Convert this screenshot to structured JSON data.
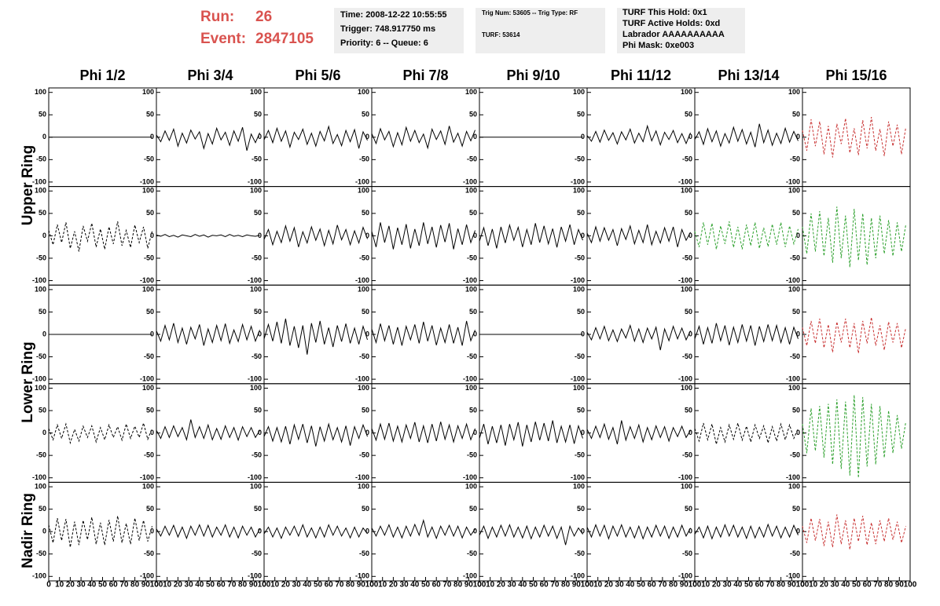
{
  "header": {
    "run_label": "Run:",
    "run": "26",
    "event_label": "Event:",
    "event": "2847105",
    "boxes": [
      [
        "Time: 2008-12-22 10:55:55",
        "Trigger: 748.917750 ms",
        "Priority: 6 -- Queue: 6"
      ],
      [
        "Trig Num: 53605 -- Trig Type: RF",
        "TURF: 53614"
      ],
      [
        "TURF This Hold: 0x1",
        "TURF Active Holds: 0xd",
        "Labrador AAAAAAAAAA",
        "Phi Mask: 0xe003"
      ]
    ]
  },
  "chart_data": {
    "type": "line",
    "columns": [
      "Phi 1/2",
      "Phi 3/4",
      "Phi 5/6",
      "Phi 7/8",
      "Phi 9/10",
      "Phi 11/12",
      "Phi 13/14",
      "Phi 15/16"
    ],
    "rows": [
      "Upper Ring",
      "Lower Ring",
      "Nadir Ring"
    ],
    "ylim": [
      -110,
      110
    ],
    "yticks": [
      -100,
      -50,
      0,
      50,
      100
    ],
    "xlim": [
      0,
      100
    ],
    "xticks": [
      0,
      10,
      20,
      30,
      40,
      50,
      60,
      70,
      80,
      90,
      100
    ],
    "x": [
      0,
      4,
      8,
      12,
      16,
      20,
      24,
      28,
      32,
      36,
      40,
      44,
      48,
      52,
      56,
      60,
      64,
      68,
      72,
      76,
      80,
      84,
      88,
      92,
      96
    ],
    "panels": [
      {
        "color": "#000000",
        "dash": false,
        "values": [
          0,
          0,
          0,
          0,
          0,
          0,
          0,
          0,
          0,
          0,
          0,
          0,
          0,
          0,
          0,
          0,
          0,
          0,
          0,
          0,
          0,
          0,
          0,
          0,
          0
        ]
      },
      {
        "color": "#000000",
        "dash": false,
        "values": [
          5,
          -10,
          14,
          -7,
          18,
          -20,
          9,
          -13,
          16,
          -4,
          12,
          -25,
          8,
          -15,
          20,
          -6,
          11,
          -18,
          14,
          -9,
          22,
          -30,
          7,
          -12,
          10
        ]
      },
      {
        "color": "#000000",
        "dash": false,
        "values": [
          -6,
          15,
          -12,
          20,
          -9,
          14,
          -22,
          11,
          -5,
          18,
          -16,
          9,
          -20,
          13,
          -8,
          24,
          -14,
          6,
          -19,
          15,
          -10,
          17,
          -25,
          12,
          -7
        ]
      },
      {
        "color": "#000000",
        "dash": false,
        "values": [
          8,
          -14,
          19,
          -6,
          13,
          -21,
          10,
          -17,
          22,
          -9,
          15,
          -12,
          7,
          -24,
          18,
          -5,
          14,
          -16,
          25,
          -11,
          9,
          -20,
          13,
          -8,
          16
        ]
      },
      {
        "color": "#000000",
        "dash": false,
        "values": [
          0,
          0,
          0,
          0,
          0,
          0,
          0,
          0,
          0,
          0,
          0,
          0,
          0,
          0,
          0,
          0,
          0,
          0,
          0,
          0,
          0,
          0,
          0,
          0,
          0
        ]
      },
      {
        "color": "#000000",
        "dash": false,
        "values": [
          4,
          -9,
          13,
          -11,
          16,
          -7,
          10,
          -15,
          12,
          -6,
          18,
          -13,
          9,
          -10,
          25,
          -8,
          14,
          -17,
          11,
          -5,
          15,
          -12,
          8,
          -14,
          10
        ]
      },
      {
        "color": "#000000",
        "dash": false,
        "values": [
          -5,
          12,
          -16,
          19,
          -10,
          14,
          -20,
          8,
          -13,
          22,
          -9,
          17,
          -15,
          11,
          -22,
          30,
          -12,
          16,
          -18,
          9,
          -14,
          20,
          -11,
          13,
          -8
        ]
      },
      {
        "color": "#c83232",
        "dash": true,
        "values": [
          15,
          -30,
          40,
          -20,
          35,
          -38,
          25,
          -45,
          30,
          -15,
          42,
          -35,
          20,
          -40,
          38,
          -25,
          45,
          -30,
          18,
          -42,
          35,
          -20,
          28,
          -38,
          22
        ]
      },
      {
        "color": "#000000",
        "dash": true,
        "values": [
          12,
          -20,
          25,
          -15,
          30,
          -28,
          10,
          -35,
          22,
          -12,
          28,
          -25,
          15,
          -30,
          20,
          -18,
          32,
          -22,
          12,
          -26,
          24,
          -15,
          20,
          -28,
          10
        ]
      },
      {
        "color": "#000000",
        "dash": false,
        "values": [
          2,
          -1,
          3,
          -2,
          1,
          -3,
          2,
          0,
          -2,
          3,
          -1,
          2,
          -3,
          1,
          0,
          2,
          -2,
          3,
          -1,
          1,
          -2,
          2,
          0,
          -1,
          1
        ]
      },
      {
        "color": "#000000",
        "dash": false,
        "values": [
          -8,
          14,
          -20,
          10,
          -15,
          22,
          -12,
          18,
          -25,
          9,
          -16,
          20,
          -10,
          15,
          -22,
          12,
          -18,
          24,
          -9,
          14,
          -20,
          11,
          -16,
          19,
          -7
        ]
      },
      {
        "color": "#000000",
        "dash": false,
        "values": [
          10,
          -25,
          30,
          -15,
          22,
          -30,
          18,
          -20,
          26,
          -28,
          15,
          -22,
          30,
          -18,
          20,
          -26,
          24,
          -14,
          28,
          -30,
          16,
          -20,
          25,
          -15,
          12
        ]
      },
      {
        "color": "#000000",
        "dash": false,
        "values": [
          -12,
          18,
          -22,
          15,
          -28,
          20,
          -16,
          24,
          -10,
          19,
          -25,
          14,
          -20,
          28,
          -15,
          22,
          -18,
          16,
          -26,
          20,
          -12,
          25,
          -20,
          14,
          -10
        ]
      },
      {
        "color": "#000000",
        "dash": false,
        "values": [
          6,
          -15,
          20,
          -12,
          18,
          -10,
          14,
          -22,
          16,
          -8,
          22,
          -18,
          12,
          -15,
          25,
          -20,
          10,
          -16,
          18,
          -12,
          20,
          -25,
          14,
          -10,
          8
        ]
      },
      {
        "color": "#2ca02c",
        "dash": true,
        "values": [
          10,
          -25,
          30,
          -20,
          28,
          -30,
          22,
          -18,
          32,
          -26,
          20,
          -30,
          25,
          -22,
          30,
          -28,
          18,
          -24,
          26,
          -20,
          30,
          -25,
          22,
          -18,
          15
        ]
      },
      {
        "color": "#2ca02c",
        "dash": true,
        "values": [
          20,
          -40,
          50,
          -35,
          55,
          -45,
          40,
          -60,
          65,
          -50,
          45,
          -70,
          60,
          -55,
          50,
          -65,
          40,
          -50,
          45,
          -40,
          35,
          -45,
          30,
          -35,
          25
        ]
      },
      {
        "color": "#000000",
        "dash": false,
        "values": [
          0,
          0,
          0,
          0,
          0,
          0,
          0,
          0,
          0,
          0,
          0,
          0,
          0,
          0,
          0,
          0,
          0,
          0,
          0,
          0,
          0,
          0,
          0,
          0,
          0
        ]
      },
      {
        "color": "#000000",
        "dash": false,
        "values": [
          8,
          -15,
          20,
          -12,
          25,
          -18,
          14,
          -22,
          16,
          -10,
          22,
          -25,
          12,
          -18,
          20,
          -14,
          24,
          -20,
          10,
          -16,
          22,
          -12,
          18,
          -15,
          10
        ]
      },
      {
        "color": "#000000",
        "dash": false,
        "values": [
          -10,
          22,
          -15,
          28,
          -20,
          35,
          -25,
          18,
          -30,
          20,
          -45,
          25,
          -18,
          30,
          -22,
          15,
          -28,
          20,
          -16,
          24,
          -20,
          14,
          -22,
          18,
          -12
        ]
      },
      {
        "color": "#000000",
        "dash": false,
        "values": [
          12,
          -18,
          24,
          -14,
          20,
          -22,
          16,
          -25,
          18,
          -12,
          22,
          -20,
          28,
          -15,
          20,
          -24,
          14,
          -18,
          22,
          -20,
          16,
          -25,
          30,
          -14,
          10
        ]
      },
      {
        "color": "#000000",
        "dash": false,
        "values": [
          0,
          0,
          0,
          0,
          0,
          0,
          0,
          0,
          0,
          0,
          0,
          0,
          0,
          0,
          0,
          0,
          0,
          0,
          0,
          0,
          0,
          0,
          0,
          0,
          0
        ]
      },
      {
        "color": "#000000",
        "dash": false,
        "values": [
          5,
          -12,
          15,
          -10,
          18,
          -14,
          10,
          -16,
          12,
          -8,
          20,
          -15,
          12,
          -18,
          14,
          -10,
          16,
          -35,
          12,
          -14,
          18,
          -10,
          14,
          -12,
          8
        ]
      },
      {
        "color": "#000000",
        "dash": false,
        "values": [
          -10,
          18,
          -22,
          15,
          -20,
          25,
          -14,
          20,
          -24,
          16,
          -18,
          22,
          -15,
          20,
          -25,
          18,
          -16,
          22,
          -14,
          20,
          -18,
          15,
          -22,
          16,
          -10
        ]
      },
      {
        "color": "#c83232",
        "dash": true,
        "values": [
          15,
          -25,
          30,
          -20,
          35,
          -30,
          22,
          -40,
          28,
          -18,
          35,
          -30,
          25,
          -42,
          30,
          -20,
          38,
          -25,
          20,
          -35,
          28,
          -18,
          25,
          -30,
          15
        ]
      },
      {
        "color": "#000000",
        "dash": true,
        "values": [
          10,
          -15,
          18,
          -12,
          20,
          -22,
          8,
          -18,
          15,
          -10,
          16,
          -20,
          12,
          -15,
          18,
          -10,
          14,
          -16,
          20,
          -12,
          15,
          -10,
          22,
          -14,
          10
        ]
      },
      {
        "color": "#000000",
        "dash": false,
        "values": [
          6,
          -12,
          14,
          -10,
          16,
          -8,
          12,
          -15,
          30,
          -10,
          14,
          -12,
          18,
          -15,
          10,
          -14,
          16,
          -10,
          12,
          -16,
          14,
          -8,
          12,
          -10,
          6
        ]
      },
      {
        "color": "#000000",
        "dash": false,
        "values": [
          -8,
          14,
          -18,
          12,
          -20,
          15,
          -25,
          18,
          -14,
          20,
          -22,
          16,
          -30,
          14,
          -18,
          20,
          -15,
          12,
          -20,
          16,
          -28,
          14,
          -12,
          18,
          -8
        ]
      },
      {
        "color": "#000000",
        "dash": false,
        "values": [
          10,
          -16,
          20,
          -14,
          22,
          -18,
          15,
          -20,
          18,
          -12,
          24,
          -20,
          16,
          -22,
          20,
          -18,
          25,
          -14,
          18,
          -20,
          16,
          -12,
          20,
          -15,
          10
        ]
      },
      {
        "color": "#000000",
        "dash": false,
        "values": [
          -12,
          20,
          -25,
          15,
          -22,
          18,
          -28,
          20,
          -15,
          24,
          -30,
          18,
          -20,
          25,
          -16,
          22,
          -18,
          28,
          -22,
          15,
          -20,
          18,
          -24,
          16,
          -12
        ]
      },
      {
        "color": "#000000",
        "dash": false,
        "values": [
          8,
          -12,
          15,
          -10,
          20,
          -14,
          12,
          -25,
          28,
          -16,
          14,
          -12,
          18,
          -20,
          12,
          -15,
          16,
          -10,
          14,
          -18,
          12,
          -8,
          15,
          -10,
          6
        ]
      },
      {
        "color": "#000000",
        "dash": true,
        "values": [
          10,
          -18,
          22,
          -15,
          20,
          -25,
          12,
          -20,
          18,
          -14,
          22,
          -16,
          15,
          -20,
          18,
          -12,
          16,
          -22,
          14,
          -18,
          20,
          -15,
          18,
          -12,
          10
        ]
      },
      {
        "color": "#2ca02c",
        "dash": true,
        "values": [
          20,
          -45,
          55,
          -40,
          60,
          -55,
          65,
          -70,
          75,
          -80,
          70,
          -95,
          85,
          -100,
          80,
          -75,
          65,
          -70,
          60,
          -55,
          50,
          -45,
          40,
          -35,
          25
        ]
      },
      {
        "color": "#000000",
        "dash": true,
        "values": [
          15,
          -25,
          30,
          -20,
          28,
          -35,
          22,
          -30,
          25,
          -18,
          32,
          -28,
          20,
          -30,
          26,
          -22,
          35,
          -25,
          18,
          -28,
          30,
          -20,
          25,
          -22,
          12
        ]
      },
      {
        "color": "#000000",
        "dash": false,
        "values": [
          6,
          -10,
          12,
          -8,
          14,
          -12,
          10,
          -15,
          12,
          -8,
          15,
          -10,
          14,
          -12,
          10,
          -8,
          15,
          -12,
          10,
          -14,
          12,
          -8,
          10,
          -12,
          6
        ]
      },
      {
        "color": "#000000",
        "dash": false,
        "values": [
          -5,
          10,
          -12,
          8,
          -15,
          10,
          -8,
          12,
          -10,
          15,
          -12,
          8,
          -14,
          10,
          -12,
          15,
          -8,
          12,
          -10,
          8,
          -14,
          10,
          -12,
          8,
          -5
        ]
      },
      {
        "color": "#000000",
        "dash": false,
        "values": [
          8,
          -10,
          12,
          -8,
          15,
          -12,
          10,
          -14,
          12,
          -10,
          16,
          -8,
          25,
          -12,
          10,
          -15,
          12,
          -8,
          14,
          -10,
          12,
          -14,
          10,
          -8,
          6
        ]
      },
      {
        "color": "#000000",
        "dash": false,
        "values": [
          -8,
          12,
          -15,
          10,
          -12,
          14,
          -10,
          15,
          -12,
          10,
          -14,
          12,
          -16,
          10,
          -12,
          14,
          -10,
          12,
          -15,
          10,
          -30,
          12,
          -10,
          8,
          -6
        ]
      },
      {
        "color": "#000000",
        "dash": false,
        "values": [
          10,
          -12,
          15,
          -10,
          14,
          -16,
          12,
          -10,
          15,
          -12,
          10,
          -14,
          12,
          -16,
          10,
          -12,
          14,
          -10,
          12,
          -15,
          10,
          -12,
          14,
          -10,
          8
        ]
      },
      {
        "color": "#000000",
        "dash": false,
        "values": [
          -6,
          10,
          -14,
          12,
          -16,
          10,
          -12,
          15,
          -10,
          14,
          -12,
          10,
          -15,
          12,
          -14,
          10,
          -12,
          16,
          -10,
          12,
          -14,
          10,
          -12,
          14,
          -8
        ]
      },
      {
        "color": "#c83232",
        "dash": true,
        "values": [
          12,
          -25,
          30,
          -20,
          28,
          -32,
          22,
          -35,
          38,
          -28,
          25,
          -40,
          30,
          -22,
          35,
          -30,
          20,
          -28,
          25,
          -22,
          30,
          -18,
          22,
          -25,
          12
        ]
      }
    ]
  }
}
